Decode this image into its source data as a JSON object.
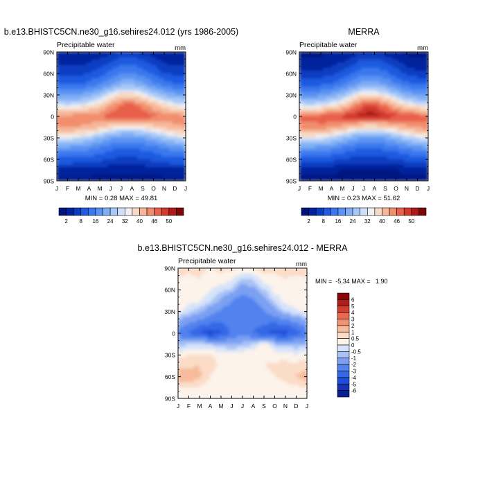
{
  "chart_data": [
    {
      "type": "heatmap",
      "title": "b.e13.BHISTC5CN.ne30_g16.sehires24.012 (yrs 1986-2005)",
      "subtitle": "Precipitable water",
      "units": "mm",
      "xlabel": "",
      "ylabel": "",
      "x_ticks": [
        "J",
        "F",
        "M",
        "A",
        "M",
        "J",
        "J",
        "A",
        "S",
        "O",
        "N",
        "D",
        "J"
      ],
      "y_ticks": [
        "90N",
        "60N",
        "30N",
        "0",
        "30S",
        "60S",
        "90S"
      ],
      "ylim": [
        -90,
        90
      ],
      "x": [
        0,
        1,
        2,
        3,
        4,
        5,
        6,
        7,
        8,
        9,
        10,
        11,
        12
      ],
      "y": [
        90,
        75,
        60,
        45,
        30,
        15,
        0,
        -15,
        -30,
        -45,
        -60,
        -75,
        -90
      ],
      "values": [
        [
          2,
          2,
          2,
          3,
          3,
          4,
          5,
          5,
          4,
          3,
          2,
          2,
          2
        ],
        [
          4,
          4,
          4,
          5,
          6,
          8,
          11,
          11,
          9,
          7,
          5,
          4,
          4
        ],
        [
          7,
          7,
          7,
          8,
          10,
          13,
          16,
          16,
          14,
          11,
          8,
          7,
          7
        ],
        [
          12,
          12,
          12,
          13,
          16,
          19,
          23,
          23,
          21,
          17,
          14,
          12,
          12
        ],
        [
          20,
          19,
          20,
          22,
          25,
          30,
          34,
          34,
          31,
          27,
          23,
          21,
          20
        ],
        [
          30,
          29,
          30,
          32,
          35,
          40,
          44,
          45,
          42,
          38,
          34,
          31,
          30
        ],
        [
          41,
          41,
          42,
          42,
          43,
          45,
          46,
          46,
          45,
          44,
          43,
          42,
          41
        ],
        [
          40,
          40,
          40,
          39,
          37,
          34,
          32,
          32,
          33,
          35,
          37,
          39,
          40
        ],
        [
          30,
          30,
          29,
          27,
          24,
          21,
          19,
          19,
          20,
          23,
          26,
          28,
          30
        ],
        [
          19,
          19,
          18,
          17,
          15,
          13,
          12,
          12,
          13,
          14,
          16,
          18,
          19
        ],
        [
          11,
          11,
          10,
          10,
          9,
          8,
          7,
          7,
          8,
          9,
          10,
          11,
          11
        ],
        [
          4,
          4,
          4,
          4,
          3,
          3,
          3,
          3,
          3,
          3,
          4,
          4,
          4
        ],
        [
          1,
          1,
          1,
          1,
          1,
          1,
          1,
          1,
          1,
          1,
          1,
          1,
          1
        ]
      ],
      "stats": "MIN =   0.28 MAX =  49.81",
      "colorbar_labels": [
        "2",
        "8",
        "16",
        "24",
        "32",
        "40",
        "46",
        "50"
      ]
    },
    {
      "type": "heatmap",
      "title": "MERRA",
      "subtitle": "Precipitable water",
      "units": "mm",
      "xlabel": "",
      "ylabel": "",
      "x_ticks": [
        "J",
        "F",
        "M",
        "A",
        "M",
        "J",
        "J",
        "A",
        "S",
        "O",
        "N",
        "D",
        "J"
      ],
      "y_ticks": [
        "90N",
        "60N",
        "30N",
        "0",
        "30S",
        "60S",
        "90S"
      ],
      "ylim": [
        -90,
        90
      ],
      "x": [
        0,
        1,
        2,
        3,
        4,
        5,
        6,
        7,
        8,
        9,
        10,
        11,
        12
      ],
      "y": [
        90,
        75,
        60,
        45,
        30,
        15,
        0,
        -15,
        -30,
        -45,
        -60,
        -75,
        -90
      ],
      "values": [
        [
          1,
          1,
          1,
          2,
          2,
          3,
          4,
          4,
          3,
          2,
          1,
          1,
          1
        ],
        [
          3,
          3,
          3,
          4,
          5,
          7,
          10,
          10,
          8,
          6,
          4,
          3,
          3
        ],
        [
          6,
          6,
          6,
          7,
          9,
          12,
          15,
          15,
          13,
          10,
          7,
          6,
          6
        ],
        [
          11,
          11,
          11,
          12,
          15,
          18,
          22,
          22,
          20,
          16,
          13,
          11,
          11
        ],
        [
          19,
          18,
          19,
          21,
          24,
          29,
          33,
          33,
          30,
          26,
          22,
          20,
          19
        ],
        [
          30,
          29,
          30,
          32,
          35,
          41,
          46,
          47,
          43,
          38,
          34,
          31,
          30
        ],
        [
          44,
          44,
          45,
          46,
          47,
          48,
          49,
          49,
          48,
          47,
          46,
          45,
          44
        ],
        [
          42,
          42,
          42,
          41,
          39,
          36,
          34,
          34,
          35,
          37,
          39,
          41,
          42
        ],
        [
          31,
          31,
          30,
          28,
          25,
          22,
          20,
          20,
          21,
          24,
          27,
          29,
          31
        ],
        [
          19,
          19,
          18,
          17,
          15,
          13,
          12,
          12,
          13,
          14,
          16,
          18,
          19
        ],
        [
          10,
          10,
          10,
          9,
          8,
          7,
          7,
          7,
          7,
          8,
          9,
          10,
          10
        ],
        [
          3,
          3,
          3,
          3,
          2,
          2,
          2,
          2,
          2,
          2,
          3,
          3,
          3
        ],
        [
          1,
          1,
          1,
          1,
          1,
          1,
          1,
          1,
          1,
          1,
          1,
          1,
          1
        ]
      ],
      "stats": "MIN =   0.23 MAX =  51.62",
      "colorbar_labels": [
        "2",
        "8",
        "16",
        "24",
        "32",
        "40",
        "46",
        "50"
      ]
    },
    {
      "type": "heatmap",
      "title": "b.e13.BHISTC5CN.ne30_g16.sehires24.012 - MERRA",
      "subtitle": "Precipitable water",
      "units": "mm",
      "xlabel": "",
      "ylabel": "",
      "x_ticks": [
        "J",
        "F",
        "M",
        "A",
        "M",
        "J",
        "J",
        "A",
        "S",
        "O",
        "N",
        "D",
        "J"
      ],
      "y_ticks": [
        "90N",
        "60N",
        "30N",
        "0",
        "30S",
        "60S",
        "90S"
      ],
      "ylim": [
        -90,
        90
      ],
      "x": [
        0,
        1,
        2,
        3,
        4,
        5,
        6,
        7,
        8,
        9,
        10,
        11,
        12
      ],
      "y": [
        90,
        75,
        60,
        45,
        30,
        15,
        0,
        -15,
        -30,
        -45,
        -60,
        -75,
        -90
      ],
      "values": [
        [
          0.8,
          0.6,
          0.7,
          0.5,
          0.6,
          0.6,
          0.5,
          0.6,
          0.7,
          0.6,
          0.8,
          0.7,
          0.8
        ],
        [
          0.5,
          0.4,
          0.5,
          0.3,
          0.4,
          0.2,
          -0.6,
          -0.4,
          0.3,
          0.4,
          0.5,
          0.4,
          0.5
        ],
        [
          0.4,
          0.3,
          0.2,
          0.1,
          -0.3,
          -0.6,
          -1.5,
          -1.2,
          -0.5,
          0.2,
          0.3,
          0.4,
          0.4
        ],
        [
          0.3,
          0.2,
          0.1,
          -0.4,
          -1.0,
          -2.0,
          -2.6,
          -2.2,
          -1.3,
          -0.4,
          0.2,
          0.3,
          0.3
        ],
        [
          0.2,
          -0.3,
          -0.8,
          -1.5,
          -2.2,
          -2.8,
          -3.0,
          -2.7,
          -2.0,
          -1.2,
          -0.5,
          -0.1,
          0.2
        ],
        [
          -1.2,
          -1.8,
          -2.4,
          -2.8,
          -3.0,
          -2.6,
          -2.2,
          -2.4,
          -2.8,
          -2.9,
          -2.6,
          -1.9,
          -1.2
        ],
        [
          -2.6,
          -3.2,
          -4.0,
          -4.6,
          -4.2,
          -2.8,
          -2.4,
          -3.0,
          -3.8,
          -4.4,
          -4.5,
          -3.6,
          -2.6
        ],
        [
          -0.8,
          -0.6,
          -0.4,
          -0.6,
          -0.9,
          -1.2,
          -0.8,
          -0.6,
          0.6,
          -0.6,
          -0.8,
          -0.9,
          -0.8
        ],
        [
          0.3,
          0.5,
          0.6,
          0.5,
          0.4,
          0.3,
          0.4,
          0.5,
          0.4,
          0.3,
          0.2,
          0.1,
          0.3
        ],
        [
          0.8,
          0.9,
          1.0,
          0.7,
          0.4,
          0.3,
          0.3,
          0.4,
          0.5,
          0.6,
          0.7,
          0.7,
          0.8
        ],
        [
          1.4,
          1.6,
          1.1,
          0.5,
          0.3,
          0.2,
          0.3,
          0.3,
          0.4,
          0.5,
          0.7,
          1.0,
          1.4
        ],
        [
          0.5,
          0.5,
          0.4,
          0.3,
          0.2,
          0.2,
          0.2,
          0.2,
          0.2,
          0.2,
          0.3,
          0.4,
          0.5
        ],
        [
          0.2,
          0.2,
          0.2,
          0.2,
          0.2,
          0.2,
          0.2,
          0.2,
          0.2,
          0.2,
          0.2,
          0.2,
          0.2
        ]
      ],
      "stats": "MIN =  -5.34 MAX =   1.90",
      "colorbar_labels": [
        "6",
        "5",
        "4",
        "3",
        "2",
        "1",
        "0.5",
        "0",
        "-0.5",
        "-1",
        "-2",
        "-3",
        "-4",
        "-5",
        "-6"
      ]
    }
  ],
  "colors": {
    "sequential": [
      "#00137f",
      "#00229c",
      "#0a3cc1",
      "#1f5ae0",
      "#3a78ee",
      "#5a93f2",
      "#7faef5",
      "#a8c8f7",
      "#cfe0f8",
      "#f1f1f1",
      "#f8dac6",
      "#f6b79a",
      "#f18e6d",
      "#e8614b",
      "#d13a2d",
      "#ad1a17",
      "#7e0607"
    ],
    "seq_bounds": [
      2,
      5,
      8,
      12,
      16,
      20,
      24,
      28,
      30,
      32,
      36,
      40,
      43,
      46,
      48,
      50
    ],
    "diverging": [
      "#0a1f8f",
      "#1233b8",
      "#1f4ed6",
      "#3468e6",
      "#5182ee",
      "#7ba0f2",
      "#a9c2f6",
      "#d6e3fa",
      "#fcf3ea",
      "#fbdcc7",
      "#f7bb9b",
      "#f19373",
      "#e96a50",
      "#d53d31",
      "#b11d1a",
      "#850909"
    ],
    "div_bounds": [
      -6,
      -5,
      -4,
      -3,
      -2,
      -1,
      -0.5,
      0,
      0.5,
      1,
      2,
      3,
      4,
      5,
      6
    ]
  }
}
